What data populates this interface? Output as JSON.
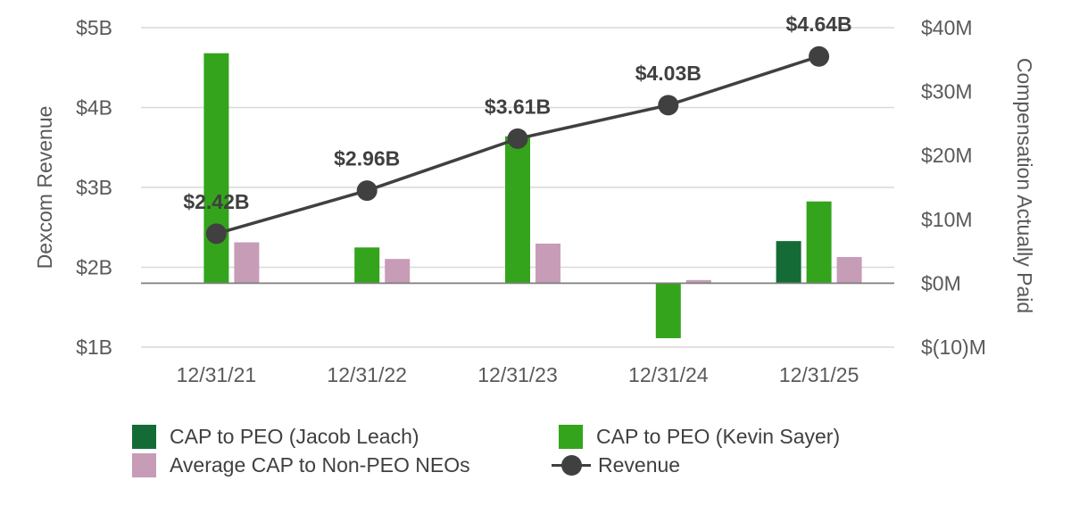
{
  "chart_data": {
    "type": "bar",
    "categories": [
      "12/31/21",
      "12/31/22",
      "12/31/23",
      "12/31/24",
      "12/31/25"
    ],
    "left_axis": {
      "label": "Dexcom Revenue",
      "ticks": [
        "$5B",
        "$4B",
        "$3B",
        "$2B",
        "$1B"
      ],
      "tick_values": [
        5,
        4,
        3,
        2,
        1
      ],
      "range": [
        1,
        5
      ],
      "unit": "$B"
    },
    "right_axis": {
      "label": "Compensation Actually Paid",
      "ticks": [
        "$40M",
        "$30M",
        "$20M",
        "$10M",
        "$0M",
        "$(10)M"
      ],
      "tick_values": [
        40,
        30,
        20,
        10,
        0,
        -10
      ],
      "range": [
        -10,
        40
      ],
      "unit": "$M"
    },
    "series": [
      {
        "name": "CAP to PEO (Jacob Leach)",
        "kind": "bar",
        "axis": "right",
        "color": "#146b36",
        "values": [
          null,
          null,
          null,
          null,
          6.6
        ]
      },
      {
        "name": "CAP to PEO (Kevin Sayer)",
        "kind": "bar",
        "axis": "right",
        "color": "#33a41c",
        "values": [
          36.0,
          5.6,
          23.0,
          -8.6,
          12.8
        ]
      },
      {
        "name": "Average CAP to Non-PEO NEOs",
        "kind": "bar",
        "axis": "right",
        "color": "#c79cb6",
        "values": [
          6.4,
          3.8,
          6.2,
          0.5,
          4.1
        ]
      },
      {
        "name": "Revenue",
        "kind": "line",
        "axis": "left",
        "color": "#404040",
        "values": [
          2.42,
          2.96,
          3.61,
          4.03,
          4.64
        ],
        "labels": [
          "$2.42B",
          "$2.96B",
          "$3.61B",
          "$4.03B",
          "$4.64B"
        ]
      }
    ],
    "grid": true,
    "legend_position": "bottom"
  }
}
